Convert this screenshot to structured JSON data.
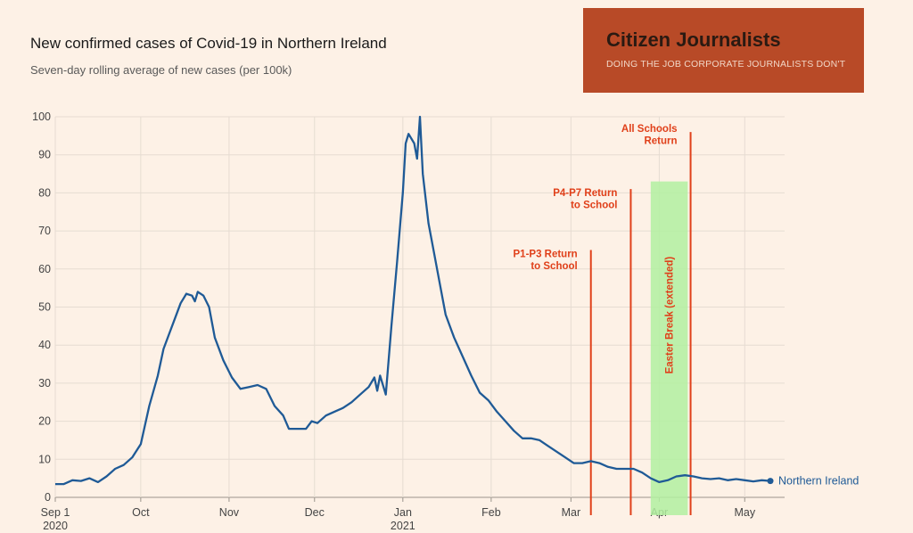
{
  "header": {
    "title": "New confirmed cases of Covid-19 in Northern Ireland",
    "subtitle": "Seven-day rolling average of new cases (per 100k)"
  },
  "banner": {
    "title": "Citizen Journalists",
    "subtitle": "DOING THE JOB CORPORATE JOURNALISTS DON'T",
    "background": "#b84a27"
  },
  "colors": {
    "line": "#1f5a96",
    "annotation": "#e0401a",
    "easter_band": "#b2f0a0",
    "background": "#fdf1e6"
  },
  "chart_data": {
    "type": "line",
    "xlim": [
      "2020-09-01",
      "2021-05-15"
    ],
    "ylim": [
      0,
      100
    ],
    "grid": true,
    "y_ticks": [
      0,
      10,
      20,
      30,
      40,
      50,
      60,
      70,
      80,
      90,
      100
    ],
    "x_ticks": [
      {
        "date": "2020-09-01",
        "label": "Sep 1",
        "sublabel": "2020"
      },
      {
        "date": "2020-10-01",
        "label": "Oct",
        "sublabel": ""
      },
      {
        "date": "2020-11-01",
        "label": "Nov",
        "sublabel": ""
      },
      {
        "date": "2020-12-01",
        "label": "Dec",
        "sublabel": ""
      },
      {
        "date": "2021-01-01",
        "label": "Jan",
        "sublabel": "2021"
      },
      {
        "date": "2021-02-01",
        "label": "Feb",
        "sublabel": ""
      },
      {
        "date": "2021-03-01",
        "label": "Mar",
        "sublabel": ""
      },
      {
        "date": "2021-04-01",
        "label": "Apr",
        "sublabel": ""
      },
      {
        "date": "2021-05-01",
        "label": "May",
        "sublabel": ""
      }
    ],
    "series": [
      {
        "name": "Northern Ireland",
        "points": [
          [
            "2020-09-01",
            3.5
          ],
          [
            "2020-09-04",
            3.5
          ],
          [
            "2020-09-07",
            4.5
          ],
          [
            "2020-09-10",
            4.3
          ],
          [
            "2020-09-13",
            5.0
          ],
          [
            "2020-09-16",
            4.0
          ],
          [
            "2020-09-19",
            5.5
          ],
          [
            "2020-09-22",
            7.5
          ],
          [
            "2020-09-25",
            8.5
          ],
          [
            "2020-09-28",
            10.5
          ],
          [
            "2020-10-01",
            14.0
          ],
          [
            "2020-10-04",
            24.0
          ],
          [
            "2020-10-07",
            32.0
          ],
          [
            "2020-10-09",
            39.0
          ],
          [
            "2020-10-11",
            43.0
          ],
          [
            "2020-10-13",
            47.0
          ],
          [
            "2020-10-15",
            51.0
          ],
          [
            "2020-10-17",
            53.5
          ],
          [
            "2020-10-19",
            53.0
          ],
          [
            "2020-10-20",
            51.5
          ],
          [
            "2020-10-21",
            54.0
          ],
          [
            "2020-10-23",
            53.0
          ],
          [
            "2020-10-25",
            50.0
          ],
          [
            "2020-10-27",
            42.0
          ],
          [
            "2020-10-30",
            36.0
          ],
          [
            "2020-11-02",
            31.5
          ],
          [
            "2020-11-05",
            28.5
          ],
          [
            "2020-11-08",
            29.0
          ],
          [
            "2020-11-11",
            29.5
          ],
          [
            "2020-11-14",
            28.5
          ],
          [
            "2020-11-17",
            24.0
          ],
          [
            "2020-11-20",
            21.5
          ],
          [
            "2020-11-22",
            18.0
          ],
          [
            "2020-11-25",
            18.0
          ],
          [
            "2020-11-28",
            18.0
          ],
          [
            "2020-11-30",
            20.0
          ],
          [
            "2020-12-02",
            19.5
          ],
          [
            "2020-12-05",
            21.5
          ],
          [
            "2020-12-08",
            22.5
          ],
          [
            "2020-12-11",
            23.5
          ],
          [
            "2020-12-14",
            25.0
          ],
          [
            "2020-12-17",
            27.0
          ],
          [
            "2020-12-20",
            29.0
          ],
          [
            "2020-12-22",
            31.5
          ],
          [
            "2020-12-23",
            28.0
          ],
          [
            "2020-12-24",
            32.0
          ],
          [
            "2020-12-26",
            27.0
          ],
          [
            "2020-12-28",
            45.0
          ],
          [
            "2020-12-30",
            62.0
          ],
          [
            "2021-01-01",
            80.0
          ],
          [
            "2021-01-02",
            93.0
          ],
          [
            "2021-01-03",
            95.5
          ],
          [
            "2021-01-05",
            93.0
          ],
          [
            "2021-01-06",
            89.0
          ],
          [
            "2021-01-07",
            100.0
          ],
          [
            "2021-01-08",
            85.0
          ],
          [
            "2021-01-10",
            72.0
          ],
          [
            "2021-01-12",
            64.0
          ],
          [
            "2021-01-14",
            56.0
          ],
          [
            "2021-01-16",
            48.0
          ],
          [
            "2021-01-19",
            42.0
          ],
          [
            "2021-01-22",
            37.0
          ],
          [
            "2021-01-25",
            32.0
          ],
          [
            "2021-01-28",
            27.5
          ],
          [
            "2021-01-31",
            25.5
          ],
          [
            "2021-02-03",
            22.5
          ],
          [
            "2021-02-06",
            20.0
          ],
          [
            "2021-02-09",
            17.5
          ],
          [
            "2021-02-12",
            15.5
          ],
          [
            "2021-02-15",
            15.5
          ],
          [
            "2021-02-18",
            15.0
          ],
          [
            "2021-02-21",
            13.5
          ],
          [
            "2021-02-24",
            12.0
          ],
          [
            "2021-02-27",
            10.5
          ],
          [
            "2021-03-02",
            9.0
          ],
          [
            "2021-03-05",
            9.0
          ],
          [
            "2021-03-08",
            9.5
          ],
          [
            "2021-03-11",
            9.0
          ],
          [
            "2021-03-14",
            8.0
          ],
          [
            "2021-03-17",
            7.5
          ],
          [
            "2021-03-20",
            7.5
          ],
          [
            "2021-03-23",
            7.5
          ],
          [
            "2021-03-26",
            6.5
          ],
          [
            "2021-03-29",
            5.0
          ],
          [
            "2021-04-01",
            4.0
          ],
          [
            "2021-04-04",
            4.5
          ],
          [
            "2021-04-07",
            5.5
          ],
          [
            "2021-04-10",
            5.8
          ],
          [
            "2021-04-13",
            5.5
          ],
          [
            "2021-04-16",
            5.0
          ],
          [
            "2021-04-19",
            4.8
          ],
          [
            "2021-04-22",
            5.0
          ],
          [
            "2021-04-25",
            4.5
          ],
          [
            "2021-04-28",
            4.8
          ],
          [
            "2021-05-01",
            4.5
          ],
          [
            "2021-05-04",
            4.2
          ],
          [
            "2021-05-07",
            4.5
          ],
          [
            "2021-05-10",
            4.3
          ]
        ]
      }
    ],
    "annotations": [
      {
        "date": "2021-03-08",
        "top": 65,
        "text": [
          "P1-P3 Return",
          "to School"
        ]
      },
      {
        "date": "2021-03-22",
        "top": 81,
        "text": [
          "P4-P7 Return",
          "to School"
        ]
      },
      {
        "date": "2021-04-12",
        "top": 96,
        "text": [
          "All Schools",
          "Return"
        ]
      }
    ],
    "band": {
      "start": "2021-03-29",
      "end": "2021-04-11",
      "top": 83,
      "label": "Easter Break (extended)"
    },
    "legend": {
      "text": "Northern Ireland",
      "placement": "right-end-of-line"
    }
  }
}
